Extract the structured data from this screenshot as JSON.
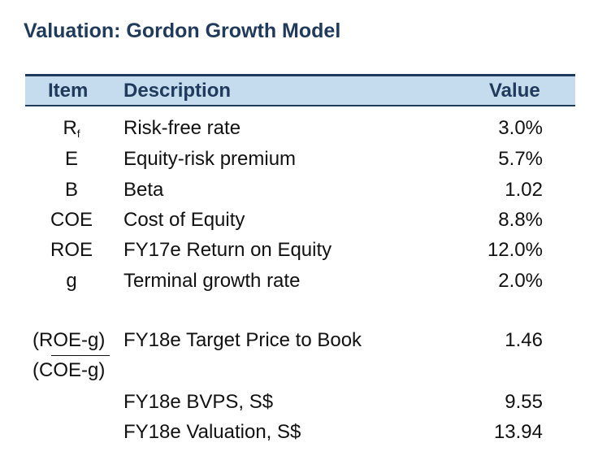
{
  "title": "Valuation: Gordon Growth Model",
  "headers": {
    "item": "Item",
    "description": "Description",
    "value": "Value"
  },
  "rows": [
    {
      "item": "R",
      "item_sub": "f",
      "description": "Risk-free rate",
      "value": "3.0%"
    },
    {
      "item": "E",
      "description": "Equity-risk premium",
      "value": "5.7%"
    },
    {
      "item": "B",
      "description": "Beta",
      "value": "1.02"
    },
    {
      "item": "COE",
      "description": "Cost of Equity",
      "value": "8.8%"
    },
    {
      "item": "ROE",
      "description": "FY17e Return on Equity",
      "value": "12.0%"
    },
    {
      "item": "g",
      "description": "Terminal growth rate",
      "value": "2.0%"
    }
  ],
  "fraction": {
    "numerator": "(ROE-g)",
    "denominator": "(COE-g)",
    "description": "FY18e Target Price to Book",
    "value": "1.46"
  },
  "summary": [
    {
      "description": "FY18e BVPS, S$",
      "value": "9.55"
    },
    {
      "description": "FY18e Valuation, S$",
      "value": "13.94"
    }
  ]
}
